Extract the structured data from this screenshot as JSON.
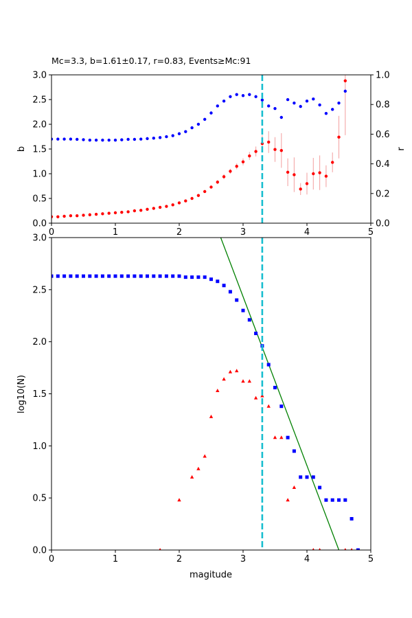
{
  "chart_data": [
    {
      "type": "scatter",
      "title": "Mc=3.3, b=1.61±0.17, r=0.83, Events≥Mc:91",
      "xlabel": "",
      "ylabel": "b",
      "ylabel_right": "r",
      "xlim": [
        0,
        5
      ],
      "ylim": [
        0,
        3
      ],
      "ylim_right": [
        1.0,
        0.0
      ],
      "x_ticks": [
        "0",
        "1",
        "2",
        "3",
        "4",
        "5"
      ],
      "y_ticks": [
        "0.0",
        "0.5",
        "1.0",
        "1.5",
        "2.0",
        "2.5",
        "3.0"
      ],
      "y_ticks_right": [
        "0.0",
        "0.2",
        "0.4",
        "0.6",
        "0.8",
        "1.0"
      ],
      "vline_x": 3.3,
      "vline_color": "#17becf",
      "series": [
        {
          "axis": "left",
          "marker": "circle",
          "color": "#ff0000",
          "errorbar_color": "#f4a6a6",
          "x": [
            0.0,
            0.1,
            0.2,
            0.3,
            0.4,
            0.5,
            0.6,
            0.7,
            0.8,
            0.9,
            1.0,
            1.1,
            1.2,
            1.3,
            1.4,
            1.5,
            1.6,
            1.7,
            1.8,
            1.9,
            2.0,
            2.1,
            2.2,
            2.3,
            2.4,
            2.5,
            2.6,
            2.7,
            2.8,
            2.9,
            3.0,
            3.1,
            3.2,
            3.3,
            3.4,
            3.5,
            3.6,
            3.7,
            3.8,
            3.9,
            4.0,
            4.1,
            4.2,
            4.3,
            4.4,
            4.5,
            4.6
          ],
          "values": [
            0.13,
            0.13,
            0.14,
            0.15,
            0.15,
            0.16,
            0.17,
            0.18,
            0.19,
            0.2,
            0.21,
            0.22,
            0.23,
            0.25,
            0.26,
            0.28,
            0.3,
            0.32,
            0.34,
            0.37,
            0.41,
            0.45,
            0.5,
            0.56,
            0.64,
            0.73,
            0.83,
            0.94,
            1.05,
            1.15,
            1.24,
            1.36,
            1.45,
            1.61,
            1.64,
            1.49,
            1.47,
            1.03,
            0.98,
            0.69,
            0.8,
            1.0,
            1.02,
            0.95,
            1.23,
            1.74,
            2.88
          ],
          "errors": [
            0.01,
            0.01,
            0.01,
            0.01,
            0.01,
            0.01,
            0.01,
            0.01,
            0.01,
            0.01,
            0.01,
            0.01,
            0.01,
            0.01,
            0.01,
            0.01,
            0.01,
            0.01,
            0.02,
            0.02,
            0.02,
            0.02,
            0.02,
            0.03,
            0.03,
            0.03,
            0.04,
            0.05,
            0.05,
            0.06,
            0.07,
            0.08,
            0.1,
            0.17,
            0.22,
            0.25,
            0.35,
            0.28,
            0.35,
            0.12,
            0.22,
            0.32,
            0.35,
            0.22,
            0.2,
            0.43,
            1.1
          ]
        },
        {
          "axis": "right",
          "marker": "circle",
          "color": "#0000ff",
          "x": [
            0.0,
            0.1,
            0.2,
            0.3,
            0.4,
            0.5,
            0.6,
            0.7,
            0.8,
            0.9,
            1.0,
            1.1,
            1.2,
            1.3,
            1.4,
            1.5,
            1.6,
            1.7,
            1.8,
            1.9,
            2.0,
            2.1,
            2.2,
            2.3,
            2.4,
            2.5,
            2.6,
            2.7,
            2.8,
            2.9,
            3.0,
            3.1,
            3.2,
            3.3,
            3.4,
            3.5,
            3.6,
            3.7,
            3.8,
            3.9,
            4.0,
            4.1,
            4.2,
            4.3,
            4.4,
            4.5,
            4.6
          ],
          "values": [
            0.567,
            0.567,
            0.567,
            0.567,
            0.565,
            0.563,
            0.56,
            0.56,
            0.56,
            0.56,
            0.56,
            0.562,
            0.565,
            0.565,
            0.567,
            0.57,
            0.573,
            0.577,
            0.583,
            0.59,
            0.603,
            0.617,
            0.643,
            0.667,
            0.7,
            0.743,
            0.79,
            0.823,
            0.853,
            0.867,
            0.86,
            0.867,
            0.853,
            0.83,
            0.79,
            0.773,
            0.713,
            0.833,
            0.81,
            0.787,
            0.823,
            0.837,
            0.797,
            0.74,
            0.767,
            0.81,
            0.89
          ]
        }
      ]
    },
    {
      "type": "scatter",
      "title": "",
      "xlabel": "magitude",
      "ylabel": "log10(N)",
      "xlim": [
        0,
        5
      ],
      "ylim": [
        0,
        3
      ],
      "x_ticks": [
        "0",
        "1",
        "2",
        "3",
        "4",
        "5"
      ],
      "y_ticks": [
        "0.0",
        "0.5",
        "1.0",
        "1.5",
        "2.0",
        "2.5",
        "3.0"
      ],
      "vline_x": 3.3,
      "vline_color": "#17becf",
      "fit_line": {
        "color": "#008000",
        "x": [
          2.65,
          4.5
        ],
        "y": [
          3.0,
          0.0
        ]
      },
      "series": [
        {
          "marker": "square",
          "color": "#0000ff",
          "x": [
            0.0,
            0.1,
            0.2,
            0.3,
            0.4,
            0.5,
            0.6,
            0.7,
            0.8,
            0.9,
            1.0,
            1.1,
            1.2,
            1.3,
            1.4,
            1.5,
            1.6,
            1.7,
            1.8,
            1.9,
            2.0,
            2.1,
            2.2,
            2.3,
            2.4,
            2.5,
            2.6,
            2.7,
            2.8,
            2.9,
            3.0,
            3.1,
            3.2,
            3.3,
            3.4,
            3.5,
            3.6,
            3.7,
            3.8,
            3.9,
            4.0,
            4.1,
            4.2,
            4.3,
            4.4,
            4.5,
            4.6,
            4.7,
            4.8
          ],
          "values": [
            2.63,
            2.63,
            2.63,
            2.63,
            2.63,
            2.63,
            2.63,
            2.63,
            2.63,
            2.63,
            2.63,
            2.63,
            2.63,
            2.63,
            2.63,
            2.63,
            2.63,
            2.63,
            2.63,
            2.63,
            2.63,
            2.62,
            2.62,
            2.62,
            2.62,
            2.6,
            2.58,
            2.54,
            2.48,
            2.4,
            2.3,
            2.21,
            2.08,
            1.96,
            1.78,
            1.56,
            1.38,
            1.08,
            0.95,
            0.7,
            0.7,
            0.7,
            0.6,
            0.48,
            0.48,
            0.48,
            0.48,
            0.3,
            0.0
          ]
        },
        {
          "marker": "triangle",
          "color": "#ff0000",
          "x": [
            1.7,
            2.0,
            2.2,
            2.3,
            2.4,
            2.5,
            2.6,
            2.7,
            2.8,
            2.9,
            3.0,
            3.1,
            3.2,
            3.3,
            3.4,
            3.5,
            3.6,
            3.7,
            3.8,
            4.1,
            4.2,
            4.6,
            4.7
          ],
          "values": [
            0.0,
            0.48,
            0.7,
            0.78,
            0.9,
            1.28,
            1.53,
            1.64,
            1.71,
            1.72,
            1.62,
            1.62,
            1.46,
            1.48,
            1.38,
            1.08,
            1.08,
            0.48,
            0.6,
            0.0,
            0.0,
            0.0,
            0.0
          ]
        }
      ]
    }
  ]
}
